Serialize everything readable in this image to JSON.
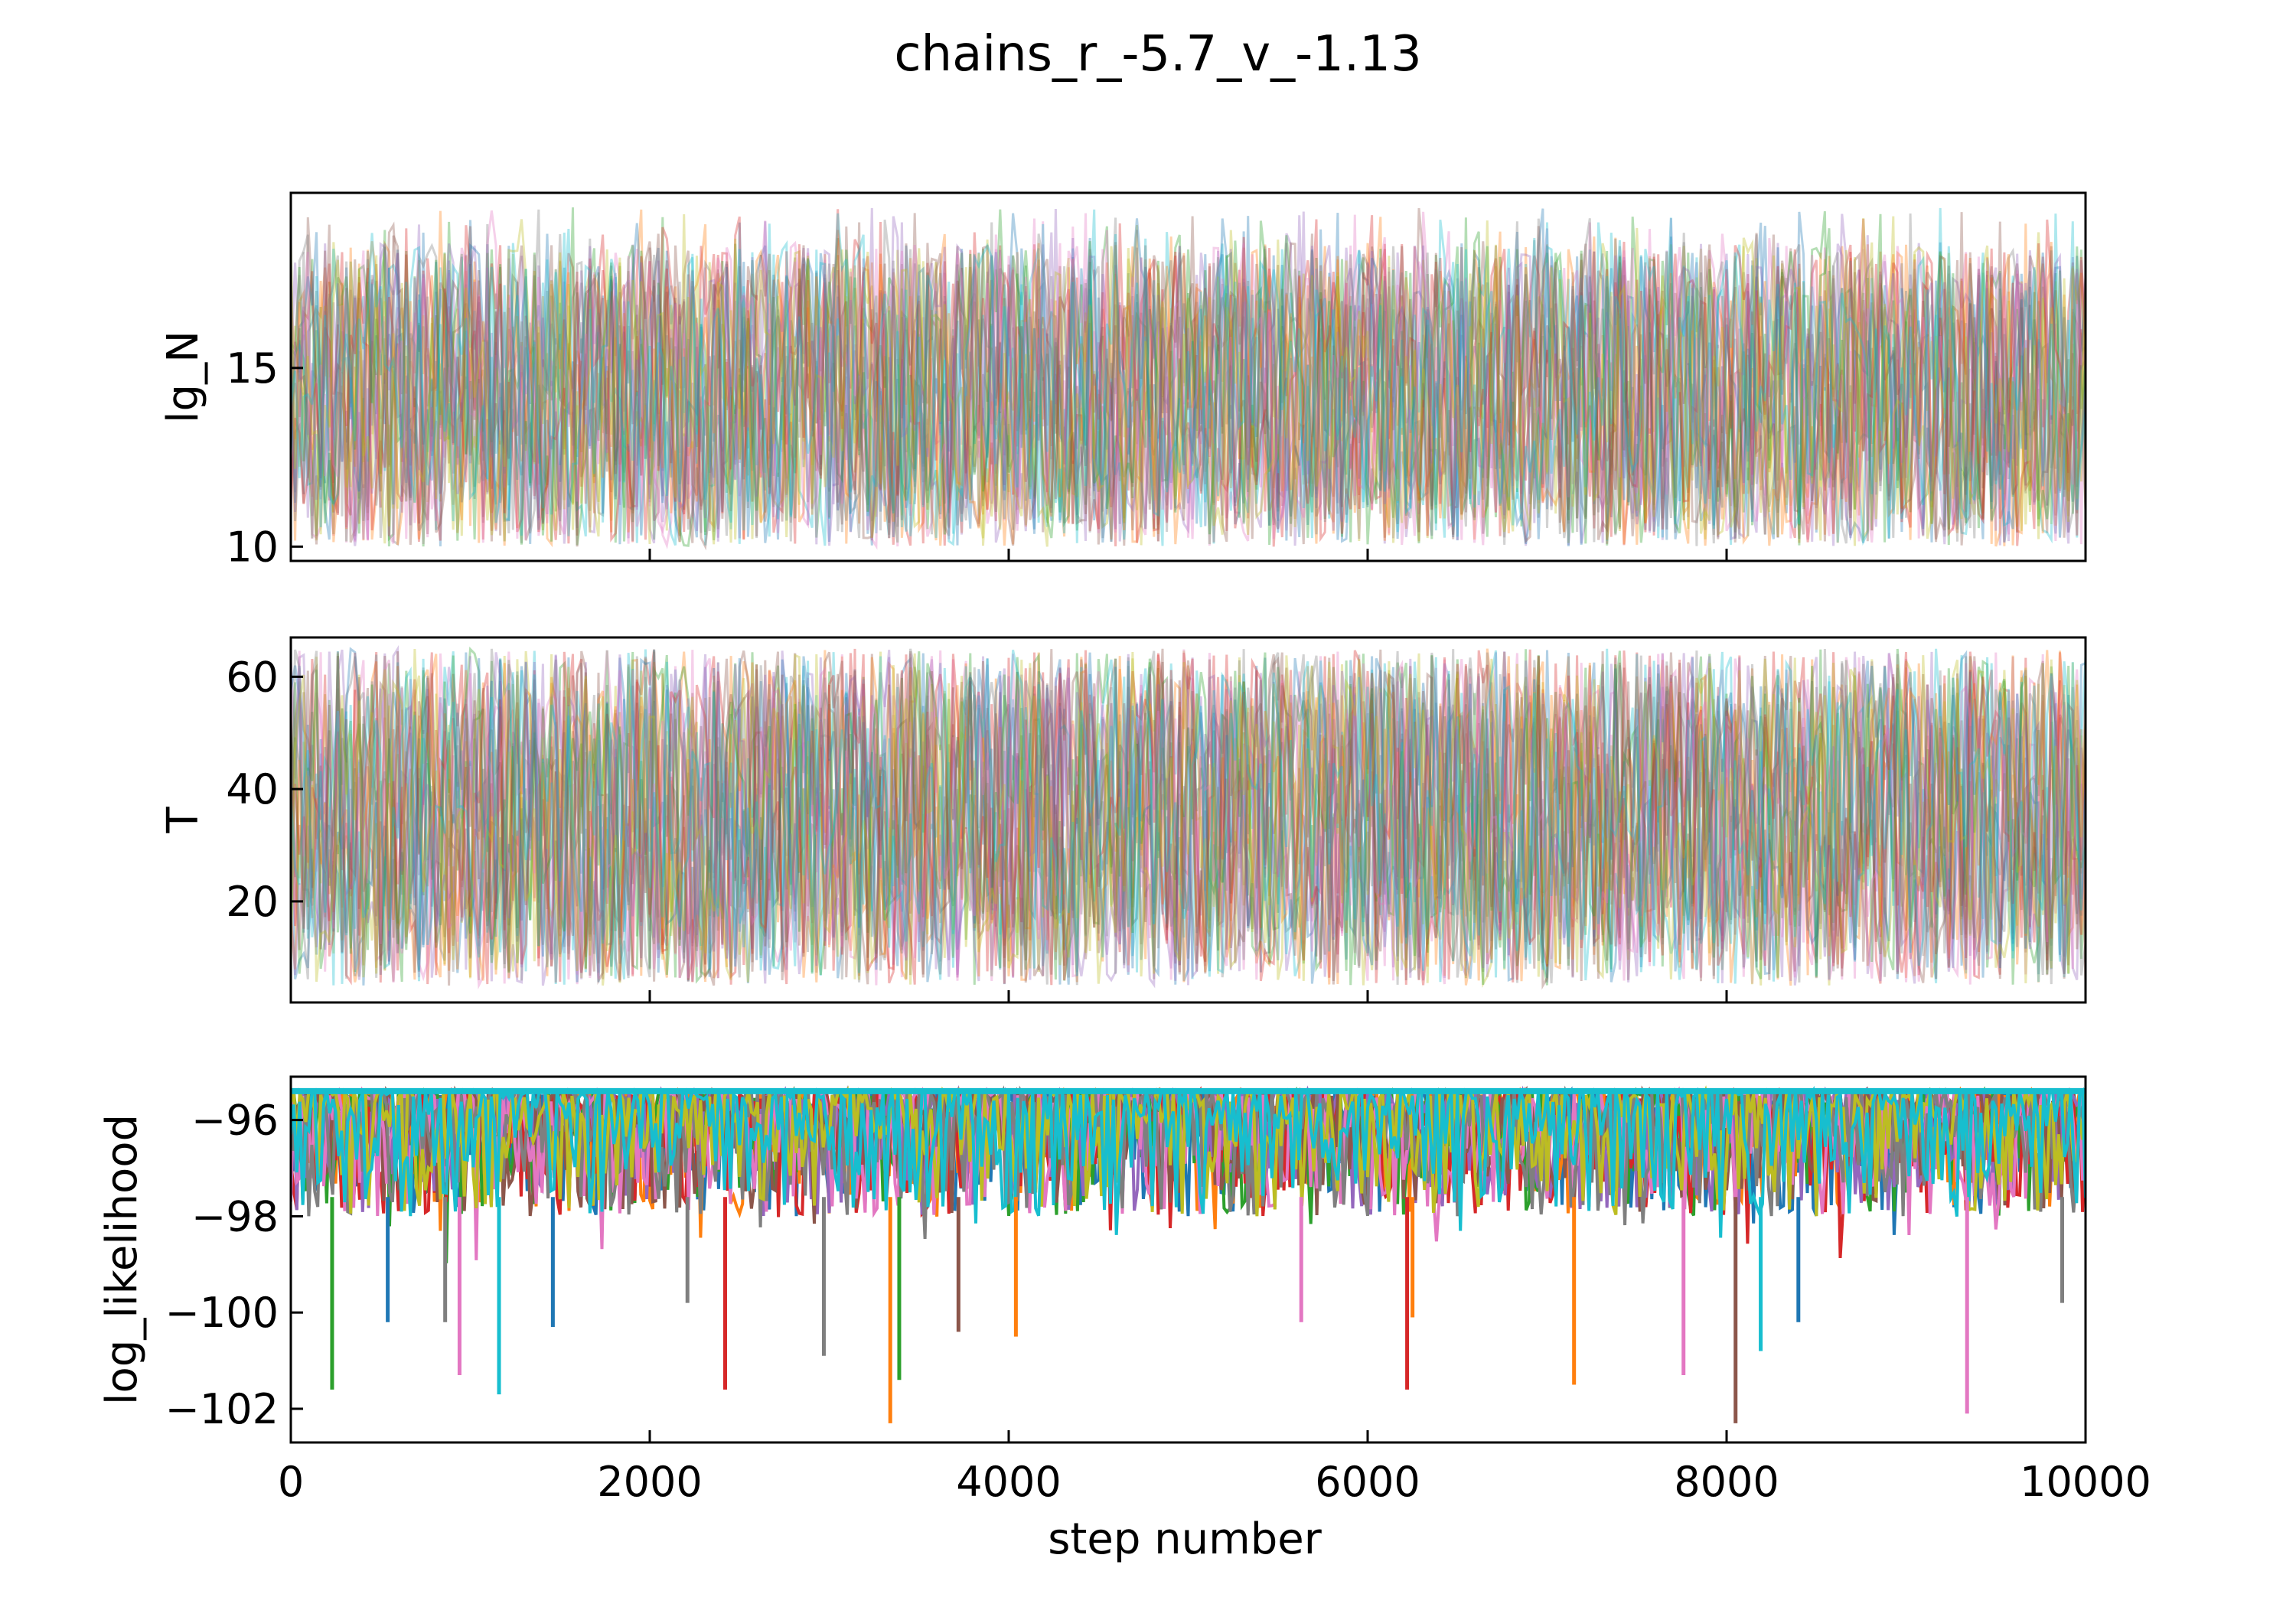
{
  "chart_data": {
    "type": "line",
    "title": "chains_r_-5.7_v_-1.13",
    "xlabel": "step number",
    "xlim": [
      0,
      10000
    ],
    "xticks": [
      0,
      2000,
      4000,
      6000,
      8000,
      10000
    ],
    "xtick_labels": [
      "0",
      "2000",
      "4000",
      "6000",
      "8000",
      "10000"
    ],
    "grid": false,
    "legend": "none",
    "palette": [
      "#1f77b4",
      "#ff7f0e",
      "#2ca02c",
      "#d62728",
      "#9467bd",
      "#8c564b",
      "#e377c2",
      "#7f7f7f",
      "#bcbd22",
      "#17becf"
    ],
    "panels": [
      {
        "ylabel": "lg_N",
        "ylim": [
          9.6,
          19.9
        ],
        "yticks": [
          10,
          15
        ],
        "ytick_labels": [
          "10",
          "15"
        ],
        "chain_range": [
          10,
          18.5
        ],
        "occasional_peak_max": 19.5,
        "series_alpha": 0.35
      },
      {
        "ylabel": "T",
        "ylim": [
          2,
          67
        ],
        "yticks": [
          20,
          40,
          60
        ],
        "ytick_labels": [
          "20",
          "40",
          "60"
        ],
        "chain_range": [
          5,
          65
        ],
        "series_alpha": 0.35
      },
      {
        "ylabel": "log_likelihood",
        "ylim": [
          -102.7,
          -95.1
        ],
        "yticks": [
          -102,
          -100,
          -98,
          -96
        ],
        "ytick_labels": [
          "−102",
          "−100",
          "−98",
          "−96"
        ],
        "chain_max": -95.4,
        "typical_min": -98,
        "spikes": [
          {
            "x": 230,
            "y": -101.6,
            "color": "#2ca02c"
          },
          {
            "x": 540,
            "y": -100.2,
            "color": "#1f77b4"
          },
          {
            "x": 860,
            "y": -100.2,
            "color": "#7f7f7f"
          },
          {
            "x": 940,
            "y": -101.3,
            "color": "#e377c2"
          },
          {
            "x": 1160,
            "y": -101.7,
            "color": "#17becf"
          },
          {
            "x": 1460,
            "y": -100.3,
            "color": "#1f77b4"
          },
          {
            "x": 2210,
            "y": -99.8,
            "color": "#7f7f7f"
          },
          {
            "x": 2420,
            "y": -101.6,
            "color": "#d62728"
          },
          {
            "x": 2970,
            "y": -100.9,
            "color": "#7f7f7f"
          },
          {
            "x": 3340,
            "y": -102.3,
            "color": "#ff7f0e"
          },
          {
            "x": 3390,
            "y": -101.4,
            "color": "#2ca02c"
          },
          {
            "x": 3720,
            "y": -100.4,
            "color": "#8c564b"
          },
          {
            "x": 4040,
            "y": -100.5,
            "color": "#ff7f0e"
          },
          {
            "x": 5630,
            "y": -100.2,
            "color": "#e377c2"
          },
          {
            "x": 6220,
            "y": -101.6,
            "color": "#d62728"
          },
          {
            "x": 6250,
            "y": -100.1,
            "color": "#ff7f0e"
          },
          {
            "x": 7150,
            "y": -101.5,
            "color": "#ff7f0e"
          },
          {
            "x": 7760,
            "y": -101.3,
            "color": "#e377c2"
          },
          {
            "x": 8050,
            "y": -102.3,
            "color": "#8c564b"
          },
          {
            "x": 8190,
            "y": -100.8,
            "color": "#17becf"
          },
          {
            "x": 8400,
            "y": -100.2,
            "color": "#1f77b4"
          },
          {
            "x": 9340,
            "y": -102.1,
            "color": "#e377c2"
          },
          {
            "x": 9870,
            "y": -99.8,
            "color": "#7f7f7f"
          }
        ]
      }
    ]
  }
}
